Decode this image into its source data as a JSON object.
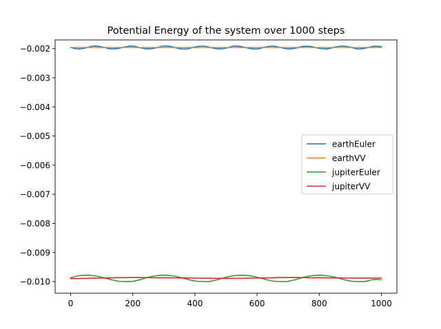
{
  "chart_data": {
    "type": "line",
    "title": "Potential Energy of the system over 1000 steps",
    "xlabel": "",
    "ylabel": "",
    "xlim": [
      -50,
      1050
    ],
    "ylim": [
      -0.0104,
      -0.0017
    ],
    "xticks": [
      0,
      200,
      400,
      600,
      800,
      1000
    ],
    "xtick_labels": [
      "0",
      "200",
      "400",
      "600",
      "800",
      "1000"
    ],
    "yticks": [
      -0.002,
      -0.003,
      -0.004,
      -0.005,
      -0.006,
      -0.007,
      -0.008,
      -0.009,
      -0.01
    ],
    "ytick_labels": [
      "−0.002",
      "−0.003",
      "−0.004",
      "−0.005",
      "−0.006",
      "−0.007",
      "−0.008",
      "−0.009",
      "−0.010"
    ],
    "grid": false,
    "legend_position": "center-right",
    "series": [
      {
        "name": "earthEuler",
        "color": "#1f77b4",
        "x": [
          0,
          25,
          50,
          75,
          100,
          125,
          150,
          175,
          200,
          225,
          250,
          275,
          300,
          325,
          350,
          375,
          400,
          425,
          450,
          475,
          500,
          525,
          550,
          575,
          600,
          625,
          650,
          675,
          700,
          725,
          750,
          775,
          800,
          825,
          850,
          875,
          900,
          925,
          950,
          975,
          1000
        ],
        "y": [
          -0.00196,
          -0.00201,
          -0.00197,
          -0.00191,
          -0.00194,
          -0.002,
          -0.002,
          -0.00194,
          -0.00191,
          -0.00197,
          -0.00201,
          -0.00197,
          -0.00191,
          -0.00193,
          -0.002,
          -0.00201,
          -0.00194,
          -0.00191,
          -0.00196,
          -0.00201,
          -0.00198,
          -0.00191,
          -0.00193,
          -0.00199,
          -0.00201,
          -0.00195,
          -0.00191,
          -0.00196,
          -0.00201,
          -0.00198,
          -0.00192,
          -0.00193,
          -0.00199,
          -0.00201,
          -0.00195,
          -0.00191,
          -0.00195,
          -0.00201,
          -0.00198,
          -0.00192,
          -0.00193
        ]
      },
      {
        "name": "earthVV",
        "color": "#ff7f0e",
        "x": [
          0,
          1000
        ],
        "y": [
          -0.00196,
          -0.00196
        ]
      },
      {
        "name": "jupiterEuler",
        "color": "#2ca02c",
        "x": [
          0,
          25,
          50,
          75,
          100,
          125,
          150,
          175,
          200,
          225,
          250,
          275,
          300,
          325,
          350,
          375,
          400,
          425,
          450,
          475,
          500,
          525,
          550,
          575,
          600,
          625,
          650,
          675,
          700,
          725,
          750,
          775,
          800,
          825,
          850,
          875,
          900,
          925,
          950,
          975,
          1000
        ],
        "y": [
          -0.00987,
          -0.0098,
          -0.00978,
          -0.0098,
          -0.00985,
          -0.00992,
          -0.00998,
          -0.01,
          -0.00999,
          -0.00993,
          -0.00985,
          -0.0098,
          -0.00978,
          -0.0098,
          -0.00985,
          -0.00992,
          -0.00998,
          -0.01,
          -0.00999,
          -0.00993,
          -0.00985,
          -0.0098,
          -0.00978,
          -0.0098,
          -0.00985,
          -0.00992,
          -0.00998,
          -0.01,
          -0.00999,
          -0.00993,
          -0.00985,
          -0.0098,
          -0.00978,
          -0.0098,
          -0.00985,
          -0.00992,
          -0.00998,
          -0.01,
          -0.00999,
          -0.00993,
          -0.00994
        ]
      },
      {
        "name": "jupiterVV",
        "color": "#d62728",
        "x": [
          0,
          100,
          200,
          300,
          400,
          500,
          600,
          700,
          800,
          900,
          1000
        ],
        "y": [
          -0.0099,
          -0.00988,
          -0.00986,
          -0.00987,
          -0.00988,
          -0.00989,
          -0.00988,
          -0.00986,
          -0.00987,
          -0.00988,
          -0.00988
        ]
      }
    ]
  }
}
